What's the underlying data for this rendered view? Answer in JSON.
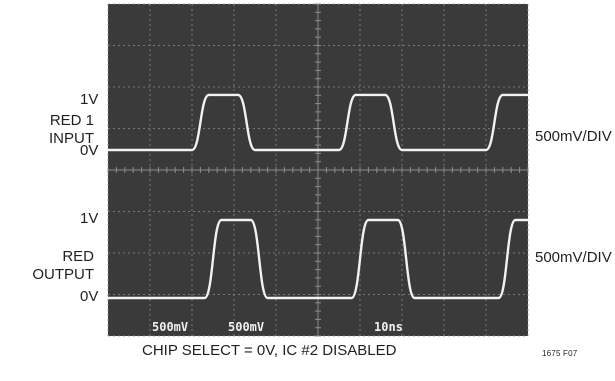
{
  "chart_data": {
    "type": "line",
    "instrument": "oscilloscope",
    "grid": true,
    "divisions": {
      "x": 10,
      "y": 8
    },
    "colors": {
      "screen": "#3a3a3a",
      "grid": "#8c8c8c",
      "trace": "#f2f2f2"
    },
    "traces": [
      {
        "label": [
          "RED 1",
          "INPUT"
        ],
        "scale": "500mV/DIV",
        "level_labels": {
          "high": "1V",
          "low": "0V"
        },
        "low_v": 0,
        "high_v": 1,
        "waveform": [
          {
            "t": 0,
            "v": 0
          },
          {
            "t": 20,
            "v": 0
          },
          {
            "t": 24,
            "v": 0.95
          },
          {
            "t": 31,
            "v": 0.95
          },
          {
            "t": 35,
            "v": 0
          },
          {
            "t": 55,
            "v": 0
          },
          {
            "t": 59,
            "v": 0.95
          },
          {
            "t": 66,
            "v": 0.95
          },
          {
            "t": 70,
            "v": 0
          },
          {
            "t": 90,
            "v": 0
          },
          {
            "t": 94,
            "v": 0.95
          },
          {
            "t": 100,
            "v": 0.95
          }
        ]
      },
      {
        "label": [
          "RED",
          "OUTPUT"
        ],
        "scale": "500mV/DIV",
        "level_labels": {
          "high": "1V",
          "low": "0V"
        },
        "low_v": 0,
        "high_v": 1,
        "waveform": [
          {
            "t": 0,
            "v": 0
          },
          {
            "t": 23,
            "v": 0
          },
          {
            "t": 27,
            "v": 1
          },
          {
            "t": 34,
            "v": 1
          },
          {
            "t": 38,
            "v": 0
          },
          {
            "t": 58,
            "v": 0
          },
          {
            "t": 62,
            "v": 1
          },
          {
            "t": 69,
            "v": 1
          },
          {
            "t": 73,
            "v": 0
          },
          {
            "t": 93,
            "v": 0
          },
          {
            "t": 97,
            "v": 1
          },
          {
            "t": 100,
            "v": 1
          }
        ]
      }
    ],
    "screen_readout": [
      "500mV",
      "500mV",
      "10ns"
    ],
    "caption": "CHIP SELECT = 0V, IC #2 DISABLED",
    "figure_id": "1675 F07"
  }
}
